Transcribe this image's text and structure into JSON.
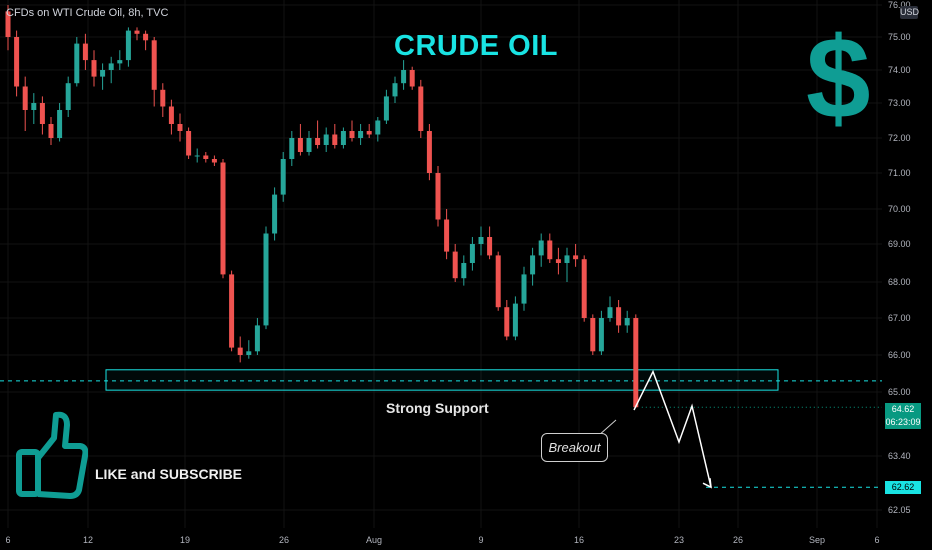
{
  "header": {
    "symbol_info": "CFDs on WTI Crude Oil, 8h, TVC",
    "currency": "USD"
  },
  "overlay": {
    "title": "CRUDE OIL",
    "dollar_sign": "$",
    "support_label": "Strong Support",
    "breakout_label": "Breakout",
    "cta_text": "LIKE and SUBSCRIBE",
    "thumb_icon": "thumbs-up-icon"
  },
  "price_labels": {
    "current_price": "64.62",
    "countdown": "06:23:09",
    "target_price": "62.62"
  },
  "colors": {
    "up": "#26a69a",
    "down": "#ef5350",
    "accent": "#19e3e3",
    "current": "#089981",
    "background": "#000000"
  },
  "chart_data": {
    "type": "candlestick",
    "interval": "8h",
    "y_ticks": [
      "76.00",
      "75.00",
      "74.00",
      "73.00",
      "72.00",
      "71.00",
      "70.00",
      "69.00",
      "68.00",
      "67.00",
      "66.00",
      "65.00",
      "63.40",
      "62.05"
    ],
    "x_ticks": [
      "6",
      "12",
      "19",
      "26",
      "Aug",
      "9",
      "16",
      "23",
      "26",
      "Sep",
      "6"
    ],
    "support_zone": {
      "low": 65.05,
      "high": 65.6
    },
    "dashed_level": 65.3,
    "target_level": 62.62,
    "current_price": 64.62,
    "projection_path": [
      64.55,
      65.55,
      63.75,
      64.65,
      62.62
    ],
    "candles": [
      [
        75.8,
        76.0,
        74.6,
        75.0
      ],
      [
        75.0,
        75.2,
        73.2,
        73.5
      ],
      [
        73.5,
        73.8,
        72.2,
        72.8
      ],
      [
        72.8,
        73.3,
        72.4,
        73.0
      ],
      [
        73.0,
        73.2,
        72.1,
        72.4
      ],
      [
        72.4,
        72.6,
        71.8,
        72.0
      ],
      [
        72.0,
        73.0,
        71.9,
        72.8
      ],
      [
        72.8,
        73.8,
        72.6,
        73.6
      ],
      [
        73.6,
        75.0,
        73.5,
        74.8
      ],
      [
        74.8,
        75.1,
        74.0,
        74.3
      ],
      [
        74.3,
        74.6,
        73.5,
        73.8
      ],
      [
        73.8,
        74.2,
        73.4,
        74.0
      ],
      [
        74.0,
        74.4,
        73.6,
        74.2
      ],
      [
        74.2,
        74.6,
        74.0,
        74.3
      ],
      [
        74.3,
        75.3,
        74.1,
        75.2
      ],
      [
        75.2,
        75.3,
        74.9,
        75.1
      ],
      [
        75.1,
        75.2,
        74.6,
        74.9
      ],
      [
        74.9,
        75.0,
        72.9,
        73.4
      ],
      [
        73.4,
        73.6,
        72.6,
        72.9
      ],
      [
        72.9,
        73.1,
        72.1,
        72.4
      ],
      [
        72.4,
        72.7,
        71.9,
        72.2
      ],
      [
        72.2,
        72.3,
        71.4,
        71.5
      ],
      [
        71.5,
        71.7,
        71.3,
        71.5
      ],
      [
        71.5,
        71.6,
        71.3,
        71.4
      ],
      [
        71.4,
        71.5,
        71.2,
        71.3
      ],
      [
        71.3,
        71.4,
        68.1,
        68.2
      ],
      [
        68.2,
        68.3,
        66.1,
        66.2
      ],
      [
        66.2,
        66.5,
        65.8,
        66.0
      ],
      [
        66.0,
        66.4,
        65.9,
        66.1
      ],
      [
        66.1,
        67.0,
        66.0,
        66.8
      ],
      [
        66.8,
        69.5,
        66.7,
        69.3
      ],
      [
        69.3,
        70.6,
        69.1,
        70.4
      ],
      [
        70.4,
        71.6,
        70.2,
        71.4
      ],
      [
        71.4,
        72.2,
        71.2,
        72.0
      ],
      [
        72.0,
        72.4,
        71.5,
        71.6
      ],
      [
        71.6,
        72.2,
        71.5,
        72.0
      ],
      [
        72.0,
        72.5,
        71.7,
        71.8
      ],
      [
        71.8,
        72.3,
        71.6,
        72.1
      ],
      [
        72.1,
        72.4,
        71.7,
        71.8
      ],
      [
        71.8,
        72.3,
        71.7,
        72.2
      ],
      [
        72.2,
        72.5,
        71.9,
        72.0
      ],
      [
        72.0,
        72.4,
        71.8,
        72.2
      ],
      [
        72.2,
        72.4,
        72.0,
        72.1
      ],
      [
        72.1,
        72.6,
        71.9,
        72.5
      ],
      [
        72.5,
        73.4,
        72.4,
        73.2
      ],
      [
        73.2,
        73.8,
        73.0,
        73.6
      ],
      [
        73.6,
        74.3,
        73.4,
        74.0
      ],
      [
        74.0,
        74.1,
        73.4,
        73.5
      ],
      [
        73.5,
        73.7,
        72.0,
        72.2
      ],
      [
        72.2,
        72.4,
        70.8,
        71.0
      ],
      [
        71.0,
        71.2,
        69.5,
        69.7
      ],
      [
        69.7,
        70.0,
        68.6,
        68.8
      ],
      [
        68.8,
        69.0,
        68.0,
        68.1
      ],
      [
        68.1,
        68.7,
        67.9,
        68.5
      ],
      [
        68.5,
        69.2,
        68.3,
        69.0
      ],
      [
        69.0,
        69.5,
        68.7,
        69.2
      ],
      [
        69.2,
        69.5,
        68.6,
        68.7
      ],
      [
        68.7,
        68.8,
        67.2,
        67.3
      ],
      [
        67.3,
        67.5,
        66.4,
        66.5
      ],
      [
        66.5,
        67.6,
        66.4,
        67.4
      ],
      [
        67.4,
        68.4,
        67.2,
        68.2
      ],
      [
        68.2,
        68.9,
        67.9,
        68.7
      ],
      [
        68.7,
        69.3,
        68.4,
        69.1
      ],
      [
        69.1,
        69.3,
        68.5,
        68.6
      ],
      [
        68.6,
        68.9,
        68.2,
        68.5
      ],
      [
        68.5,
        68.9,
        68.0,
        68.7
      ],
      [
        68.7,
        69.0,
        68.4,
        68.6
      ],
      [
        68.6,
        68.7,
        66.9,
        67.0
      ],
      [
        67.0,
        67.1,
        66.0,
        66.1
      ],
      [
        66.1,
        67.2,
        66.0,
        67.0
      ],
      [
        67.0,
        67.6,
        66.9,
        67.3
      ],
      [
        67.3,
        67.5,
        66.6,
        66.8
      ],
      [
        66.8,
        67.2,
        66.6,
        67.0
      ],
      [
        67.0,
        67.1,
        64.6,
        64.62
      ]
    ]
  }
}
